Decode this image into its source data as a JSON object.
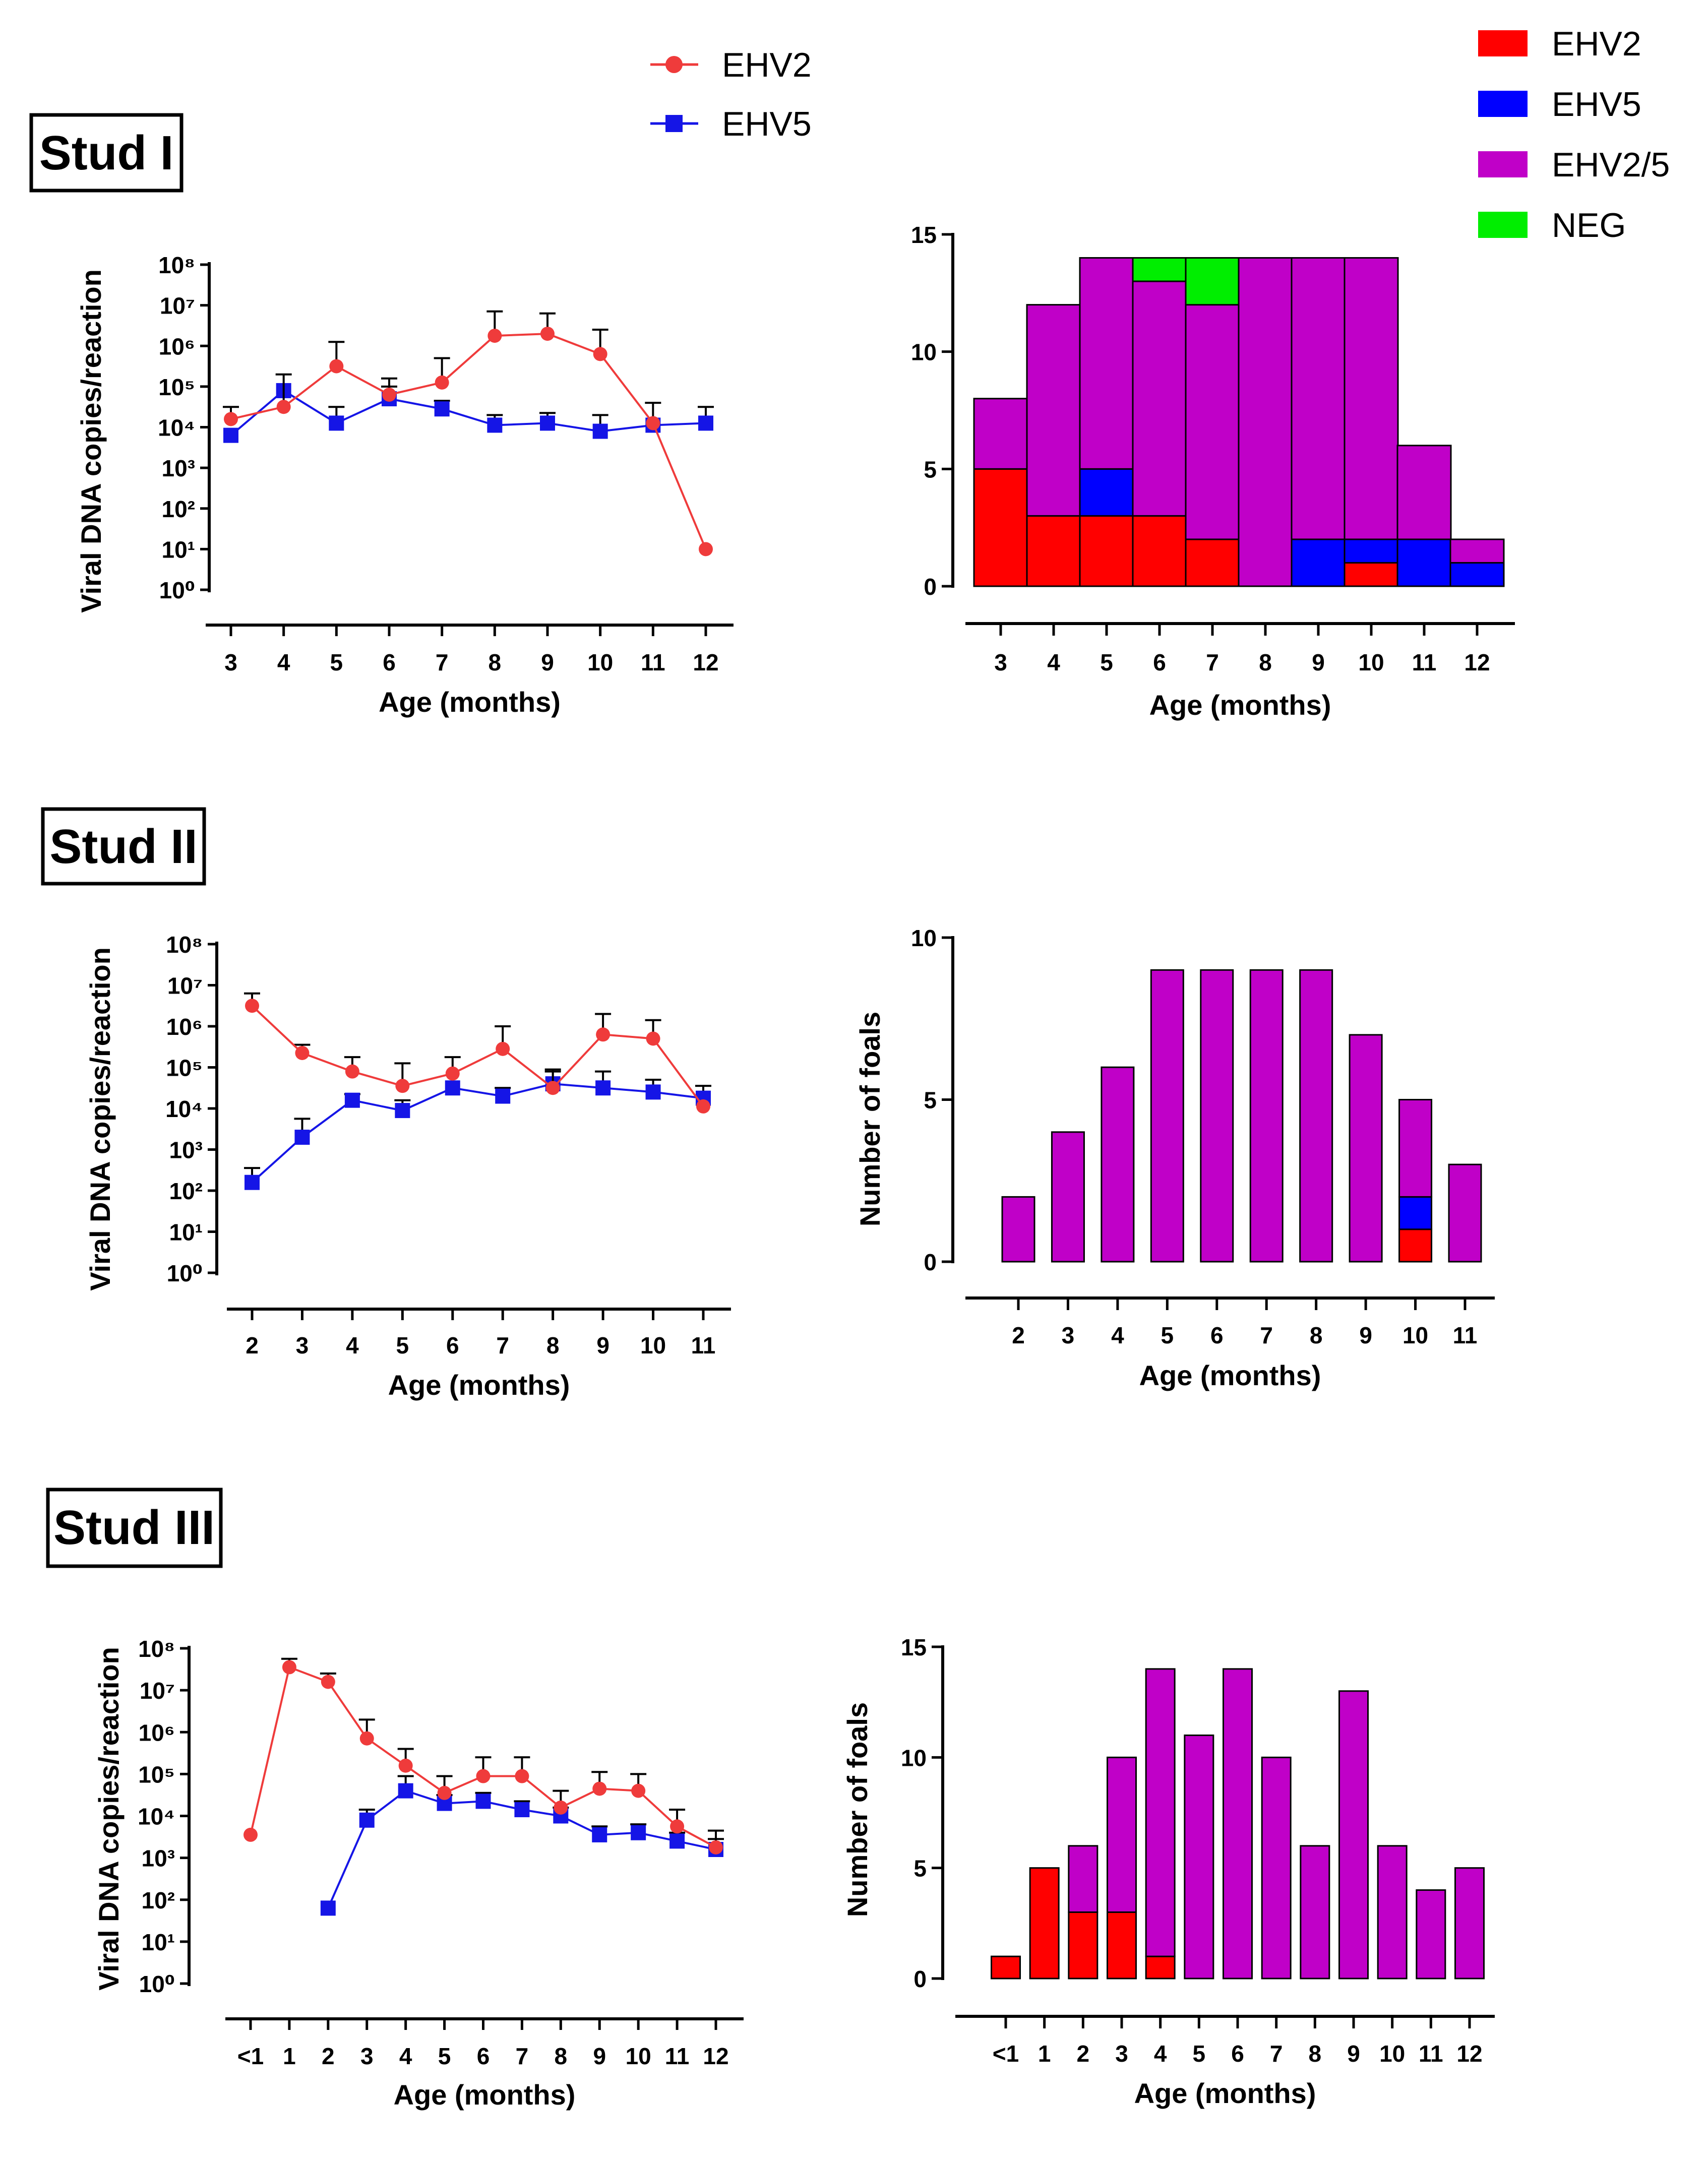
{
  "legend_line": [
    {
      "label": "EHV2",
      "color": "#ef3b3b",
      "marker": "circle"
    },
    {
      "label": "EHV5",
      "color": "#1515e6",
      "marker": "square"
    }
  ],
  "legend_bar": [
    {
      "label": "EHV2",
      "color": "#ff0000"
    },
    {
      "label": "EHV5",
      "color": "#0000ff"
    },
    {
      "label": "EHV2/5",
      "color": "#c000c8"
    },
    {
      "label": "NEG",
      "color": "#00ee00"
    }
  ],
  "chart_data": [
    {
      "type": "line",
      "panel": "Stud I",
      "title": "Stud I",
      "xlabel": "Age (months)",
      "ylabel": "Viral DNA copies/reaction",
      "yscale": "log",
      "ylim_exp": [
        0,
        8
      ],
      "categories": [
        "3",
        "4",
        "5",
        "6",
        "7",
        "8",
        "9",
        "10",
        "11",
        "12"
      ],
      "series": [
        {
          "name": "EHV2",
          "exp": [
            4.2,
            4.5,
            5.5,
            4.8,
            5.1,
            6.25,
            6.3,
            5.8,
            4.1,
            1.0
          ],
          "err_exp": [
            4.5,
            5.3,
            6.1,
            5.2,
            5.7,
            6.85,
            6.8,
            6.4,
            4.6,
            null
          ]
        },
        {
          "name": "EHV5",
          "exp": [
            3.8,
            4.9,
            4.1,
            4.7,
            4.45,
            4.05,
            4.1,
            3.9,
            4.05,
            4.1
          ],
          "err_exp": [
            null,
            null,
            4.5,
            5.0,
            4.65,
            4.3,
            4.35,
            4.3,
            null,
            4.5
          ]
        }
      ]
    },
    {
      "type": "bar",
      "panel": "Stud I",
      "xlabel": "Age (months)",
      "ylabel": "",
      "ylim": [
        0,
        15
      ],
      "yticks": [
        "0",
        "5",
        "10",
        "15"
      ],
      "categories": [
        "3",
        "4",
        "5",
        "6",
        "7",
        "8",
        "9",
        "10",
        "11",
        "12"
      ],
      "series": [
        {
          "name": "EHV2",
          "values": [
            5,
            3,
            3,
            3,
            2,
            0,
            0,
            1,
            0,
            0
          ]
        },
        {
          "name": "EHV5",
          "values": [
            0,
            0,
            2,
            0,
            0,
            0,
            2,
            1,
            2,
            1
          ]
        },
        {
          "name": "EHV2/5",
          "values": [
            3,
            9,
            9,
            10,
            10,
            14,
            12,
            12,
            4,
            1
          ]
        },
        {
          "name": "NEG",
          "values": [
            0,
            0,
            0,
            1,
            2,
            0,
            0,
            0,
            0,
            0
          ]
        }
      ]
    },
    {
      "type": "line",
      "panel": "Stud II",
      "title": "Stud II",
      "xlabel": "Age (months)",
      "ylabel": "Viral DNA copies/reaction",
      "yscale": "log",
      "ylim_exp": [
        0,
        8
      ],
      "categories": [
        "2",
        "3",
        "4",
        "5",
        "6",
        "7",
        "8",
        "9",
        "10",
        "11"
      ],
      "series": [
        {
          "name": "EHV2",
          "exp": [
            6.5,
            5.35,
            4.9,
            4.55,
            4.85,
            5.45,
            4.5,
            5.8,
            5.7,
            4.05
          ],
          "err_exp": [
            6.8,
            5.55,
            5.25,
            5.1,
            5.25,
            6.0,
            4.9,
            6.3,
            6.15,
            null
          ]
        },
        {
          "name": "EHV5",
          "exp": [
            2.2,
            3.3,
            4.2,
            3.95,
            4.5,
            4.3,
            4.6,
            4.5,
            4.4,
            4.25
          ],
          "err_exp": [
            2.55,
            3.75,
            4.35,
            4.2,
            null,
            4.5,
            4.95,
            4.9,
            4.7,
            4.55
          ]
        }
      ]
    },
    {
      "type": "bar",
      "panel": "Stud II",
      "xlabel": "Age (months)",
      "ylabel": "Number of foals",
      "ylim": [
        0,
        10
      ],
      "yticks": [
        "0",
        "5",
        "10"
      ],
      "categories": [
        "2",
        "3",
        "4",
        "5",
        "6",
        "7",
        "8",
        "9",
        "10",
        "11"
      ],
      "series": [
        {
          "name": "EHV2",
          "values": [
            0,
            0,
            0,
            0,
            0,
            0,
            0,
            0,
            1,
            0
          ]
        },
        {
          "name": "EHV5",
          "values": [
            0,
            0,
            0,
            0,
            0,
            0,
            0,
            0,
            1,
            0
          ]
        },
        {
          "name": "EHV2/5",
          "values": [
            2,
            4,
            6,
            9,
            9,
            9,
            9,
            7,
            3,
            3
          ]
        },
        {
          "name": "NEG",
          "values": [
            0,
            0,
            0,
            0,
            0,
            0,
            0,
            0,
            0,
            0
          ]
        }
      ]
    },
    {
      "type": "line",
      "panel": "Stud III",
      "title": "Stud III",
      "xlabel": "Age (months)",
      "ylabel": "Viral DNA copies/reaction",
      "yscale": "log",
      "ylim_exp": [
        0,
        8
      ],
      "categories": [
        "<1",
        "1",
        "2",
        "3",
        "4",
        "5",
        "6",
        "7",
        "8",
        "9",
        "10",
        "11",
        "12"
      ],
      "series": [
        {
          "name": "EHV2",
          "exp": [
            3.55,
            7.55,
            7.2,
            5.85,
            5.2,
            4.55,
            4.95,
            4.95,
            4.2,
            4.65,
            4.6,
            3.75,
            3.25
          ],
          "err_exp": [
            null,
            7.75,
            7.4,
            6.3,
            5.6,
            4.95,
            5.4,
            5.4,
            4.6,
            5.05,
            5.0,
            4.15,
            3.65
          ]
        },
        {
          "name": "EHV5",
          "exp": [
            null,
            null,
            1.8,
            3.9,
            4.6,
            4.3,
            4.35,
            4.15,
            4.0,
            3.55,
            3.6,
            3.4,
            3.2
          ],
          "err_exp": [
            null,
            null,
            null,
            4.15,
            4.95,
            4.5,
            4.55,
            4.35,
            4.2,
            3.75,
            3.8,
            3.6,
            3.45
          ]
        }
      ]
    },
    {
      "type": "bar",
      "panel": "Stud III",
      "xlabel": "Age (months)",
      "ylabel": "Number of foals",
      "ylim": [
        0,
        15
      ],
      "yticks": [
        "0",
        "5",
        "10",
        "15"
      ],
      "categories": [
        "<1",
        "1",
        "2",
        "3",
        "4",
        "5",
        "6",
        "7",
        "8",
        "9",
        "10",
        "11",
        "12"
      ],
      "series": [
        {
          "name": "EHV2",
          "values": [
            1,
            5,
            3,
            3,
            1,
            0,
            0,
            0,
            0,
            0,
            0,
            0,
            0
          ]
        },
        {
          "name": "EHV5",
          "values": [
            0,
            0,
            0,
            0,
            0,
            0,
            0,
            0,
            0,
            0,
            0,
            0,
            0
          ]
        },
        {
          "name": "EHV2/5",
          "values": [
            0,
            0,
            3,
            7,
            13,
            11,
            14,
            10,
            6,
            13,
            6,
            4,
            5
          ]
        },
        {
          "name": "NEG",
          "values": [
            0,
            0,
            0,
            0,
            0,
            0,
            0,
            0,
            0,
            0,
            0,
            0,
            0
          ]
        }
      ]
    }
  ]
}
